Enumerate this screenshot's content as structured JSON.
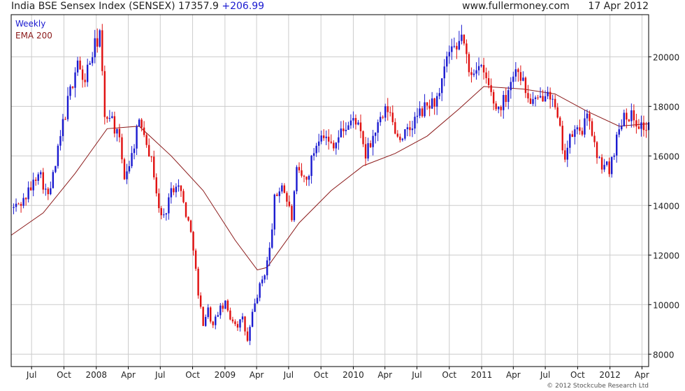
{
  "header": {
    "index_name": "India BSE Sensex Index (SENSEX)",
    "last_price": "17357.9",
    "change": "+206.99",
    "site": "www.fullermoney.com",
    "date": "17 Apr 2012"
  },
  "legend": {
    "weekly_label": "Weekly",
    "ema_label": "EMA 200"
  },
  "footer": {
    "copyright": "© 2012 Stockcube Research Ltd"
  },
  "colors": {
    "up_candle": "#1a1ad0",
    "down_candle": "#e01010",
    "ema_line": "#8b1a1a",
    "grid": "#cccccc",
    "frame": "#000000"
  },
  "chart_data": {
    "type": "candlestick",
    "period": "weekly",
    "ylim": [
      7500,
      21700
    ],
    "yticks": [
      8000,
      10000,
      12000,
      14000,
      16000,
      18000,
      20000
    ],
    "xlim": [
      "2007-05-04",
      "2012-04-20"
    ],
    "xticks": [
      {
        "date": "2007-07-01",
        "label": "Jul"
      },
      {
        "date": "2007-10-01",
        "label": "Oct"
      },
      {
        "date": "2008-01-01",
        "label": "2008"
      },
      {
        "date": "2008-04-01",
        "label": "Apr"
      },
      {
        "date": "2008-07-01",
        "label": "Jul"
      },
      {
        "date": "2008-10-01",
        "label": "Oct"
      },
      {
        "date": "2009-01-01",
        "label": "2009"
      },
      {
        "date": "2009-04-01",
        "label": "Apr"
      },
      {
        "date": "2009-07-01",
        "label": "Jul"
      },
      {
        "date": "2009-10-01",
        "label": "Oct"
      },
      {
        "date": "2010-01-01",
        "label": "2010"
      },
      {
        "date": "2010-04-01",
        "label": "Apr"
      },
      {
        "date": "2010-07-01",
        "label": "Jul"
      },
      {
        "date": "2010-10-01",
        "label": "Oct"
      },
      {
        "date": "2011-01-01",
        "label": "2011"
      },
      {
        "date": "2011-04-01",
        "label": "Apr"
      },
      {
        "date": "2011-07-01",
        "label": "Jul"
      },
      {
        "date": "2011-10-01",
        "label": "Oct"
      },
      {
        "date": "2012-01-01",
        "label": "2012"
      },
      {
        "date": "2012-04-01",
        "label": "Apr"
      }
    ],
    "close_path": [
      [
        "2007-05-11",
        13900
      ],
      [
        "2007-06-08",
        14200
      ],
      [
        "2007-07-06",
        14900
      ],
      [
        "2007-07-20",
        15500
      ],
      [
        "2007-08-17",
        14300
      ],
      [
        "2007-09-07",
        15600
      ],
      [
        "2007-09-28",
        17300
      ],
      [
        "2007-10-19",
        18600
      ],
      [
        "2007-11-09",
        19900
      ],
      [
        "2007-11-23",
        18900
      ],
      [
        "2007-12-14",
        19800
      ],
      [
        "2008-01-04",
        20700
      ],
      [
        "2008-01-11",
        21000
      ],
      [
        "2008-01-25",
        17400
      ],
      [
        "2008-02-08",
        17800
      ],
      [
        "2008-03-07",
        16500
      ],
      [
        "2008-03-21",
        15200
      ],
      [
        "2008-04-11",
        16000
      ],
      [
        "2008-04-25",
        17100
      ],
      [
        "2008-05-09",
        17300
      ],
      [
        "2008-05-23",
        16700
      ],
      [
        "2008-06-13",
        15300
      ],
      [
        "2008-06-27",
        13800
      ],
      [
        "2008-07-11",
        13500
      ],
      [
        "2008-07-25",
        14300
      ],
      [
        "2008-08-15",
        15000
      ],
      [
        "2008-08-29",
        14500
      ],
      [
        "2008-09-19",
        13300
      ],
      [
        "2008-10-03",
        12400
      ],
      [
        "2008-10-17",
        10300
      ],
      [
        "2008-10-31",
        9300
      ],
      [
        "2008-11-14",
        9800
      ],
      [
        "2008-11-28",
        9100
      ],
      [
        "2008-12-12",
        9700
      ],
      [
        "2009-01-02",
        10000
      ],
      [
        "2009-01-16",
        9500
      ],
      [
        "2009-02-06",
        9200
      ],
      [
        "2009-02-20",
        9400
      ],
      [
        "2009-03-06",
        8500
      ],
      [
        "2009-03-20",
        9600
      ],
      [
        "2009-04-03",
        10400
      ],
      [
        "2009-04-24",
        11300
      ],
      [
        "2009-05-08",
        12200
      ],
      [
        "2009-05-22",
        14200
      ],
      [
        "2009-06-12",
        14900
      ],
      [
        "2009-07-10",
        13500
      ],
      [
        "2009-07-24",
        15300
      ],
      [
        "2009-08-21",
        15000
      ],
      [
        "2009-09-11",
        16200
      ],
      [
        "2009-10-02",
        17100
      ],
      [
        "2009-10-23",
        16500
      ],
      [
        "2009-11-13",
        16600
      ],
      [
        "2009-12-04",
        17100
      ],
      [
        "2010-01-08",
        17500
      ],
      [
        "2010-02-05",
        16000
      ],
      [
        "2010-03-05",
        17000
      ],
      [
        "2010-04-09",
        17900
      ],
      [
        "2010-05-07",
        16800
      ],
      [
        "2010-06-04",
        16900
      ],
      [
        "2010-07-02",
        17600
      ],
      [
        "2010-08-06",
        18100
      ],
      [
        "2010-09-03",
        18300
      ],
      [
        "2010-09-24",
        20000
      ],
      [
        "2010-10-22",
        20200
      ],
      [
        "2010-11-05",
        21000
      ],
      [
        "2010-11-26",
        19300
      ],
      [
        "2010-12-17",
        19700
      ],
      [
        "2011-01-14",
        19100
      ],
      [
        "2011-02-11",
        17900
      ],
      [
        "2011-03-04",
        18200
      ],
      [
        "2011-03-25",
        19100
      ],
      [
        "2011-04-15",
        19600
      ],
      [
        "2011-05-13",
        18300
      ],
      [
        "2011-06-10",
        18100
      ],
      [
        "2011-07-08",
        18900
      ],
      [
        "2011-08-05",
        17400
      ],
      [
        "2011-08-26",
        16000
      ],
      [
        "2011-09-16",
        16900
      ],
      [
        "2011-10-14",
        17100
      ],
      [
        "2011-11-04",
        17600
      ],
      [
        "2011-11-25",
        15800
      ],
      [
        "2011-12-16",
        15600
      ],
      [
        "2011-12-30",
        15500
      ],
      [
        "2012-01-20",
        16700
      ],
      [
        "2012-02-10",
        17800
      ],
      [
        "2012-03-02",
        17600
      ],
      [
        "2012-03-23",
        17300
      ],
      [
        "2012-04-13",
        17100
      ],
      [
        "2012-04-20",
        17357.9
      ]
    ],
    "ema_200": [
      [
        "2007-05-04",
        12800
      ],
      [
        "2007-08-03",
        13700
      ],
      [
        "2007-11-02",
        15300
      ],
      [
        "2008-02-01",
        17100
      ],
      [
        "2008-05-02",
        17200
      ],
      [
        "2008-08-01",
        16000
      ],
      [
        "2008-10-31",
        14600
      ],
      [
        "2009-01-30",
        12600
      ],
      [
        "2009-04-03",
        11400
      ],
      [
        "2009-05-01",
        11500
      ],
      [
        "2009-07-31",
        13300
      ],
      [
        "2009-10-30",
        14600
      ],
      [
        "2010-01-29",
        15600
      ],
      [
        "2010-04-30",
        16100
      ],
      [
        "2010-07-30",
        16800
      ],
      [
        "2010-10-29",
        17900
      ],
      [
        "2011-01-07",
        18800
      ],
      [
        "2011-04-29",
        18700
      ],
      [
        "2011-07-29",
        18500
      ],
      [
        "2011-10-28",
        17800
      ],
      [
        "2012-01-27",
        17200
      ],
      [
        "2012-04-20",
        17300
      ]
    ]
  }
}
